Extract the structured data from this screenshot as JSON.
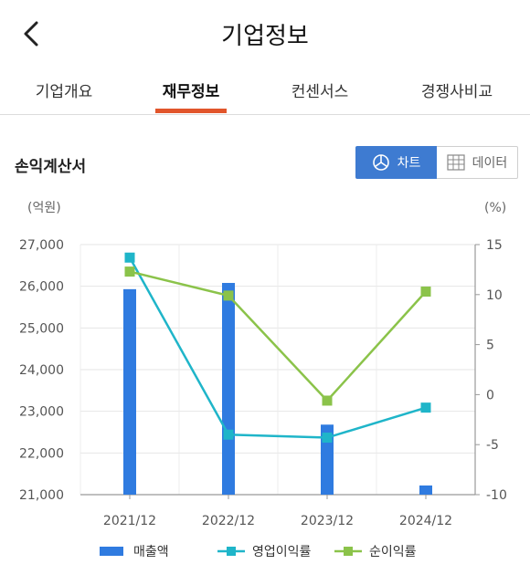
{
  "header": {
    "title": "기업정보",
    "back_icon": "chevron-left-icon"
  },
  "tabs": [
    {
      "label": "기업개요",
      "active": false
    },
    {
      "label": "재무정보",
      "active": true
    },
    {
      "label": "컨센서스",
      "active": false
    },
    {
      "label": "경쟁사비교",
      "active": false
    }
  ],
  "colors": {
    "accent": "#e1552b",
    "toggle_active": "#3e7bd1"
  },
  "section": {
    "title": "손익계산서"
  },
  "view_toggle": {
    "chart_label": "차트",
    "data_label": "데이터",
    "selected": "chart"
  },
  "chart_data": {
    "type": "bar",
    "categories": [
      "2021/12",
      "2022/12",
      "2023/12",
      "2024/12"
    ],
    "left_unit": "(억원)",
    "right_unit": "(%)",
    "left_ylim": [
      21000,
      27000
    ],
    "right_ylim": [
      -10,
      15
    ],
    "left_ticks": [
      "27,000",
      "26,000",
      "25,000",
      "24,000",
      "23,000",
      "22,000",
      "21,000"
    ],
    "right_ticks": [
      "15",
      "10",
      "5",
      "0",
      "-5",
      "-10"
    ],
    "series": [
      {
        "name": "매출액",
        "kind": "bar",
        "axis": "left",
        "color": "#2f7be0",
        "values": [
          25930,
          26080,
          22680,
          21220
        ]
      },
      {
        "name": "영업이익률",
        "kind": "line",
        "axis": "right",
        "color": "#1fb5c9",
        "values": [
          13.7,
          -4.0,
          -4.3,
          -1.3
        ]
      },
      {
        "name": "순이익률",
        "kind": "line",
        "axis": "right",
        "color": "#8bc34a",
        "values": [
          12.3,
          9.9,
          -0.6,
          10.3
        ]
      }
    ],
    "grid": true,
    "legend_position": "bottom"
  }
}
